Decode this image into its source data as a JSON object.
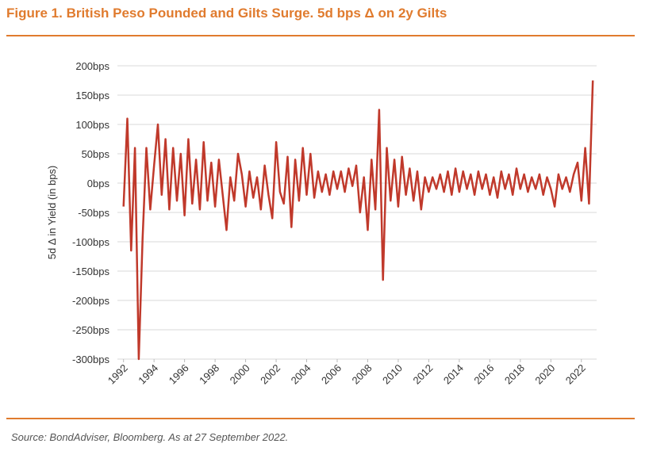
{
  "chart_data": {
    "type": "line",
    "title": "Figure 1. British Peso Pounded and Gilts Surge. 5d bps Δ on 2y Gilts",
    "y_label": "5d Δ in Yield (in bps)",
    "source": "Source: BondAdviser, Bloomberg. As at 27 September 2022.",
    "color": "#c0392b",
    "grid": true,
    "xlim": [
      1991.6,
      2023.0
    ],
    "ylim": [
      -300,
      200
    ],
    "yticks": [
      {
        "value": 200,
        "label": "200bps"
      },
      {
        "value": 150,
        "label": "150bps"
      },
      {
        "value": 100,
        "label": "100bps"
      },
      {
        "value": 50,
        "label": "50bps"
      },
      {
        "value": 0,
        "label": "0bps"
      },
      {
        "value": -50,
        "label": "-50bps"
      },
      {
        "value": -100,
        "label": "-100bps"
      },
      {
        "value": -150,
        "label": "-150bps"
      },
      {
        "value": -200,
        "label": "-200bps"
      },
      {
        "value": -250,
        "label": "-250bps"
      },
      {
        "value": -300,
        "label": "-300bps"
      }
    ],
    "xticks": [
      1992,
      1994,
      1996,
      1998,
      2000,
      2002,
      2004,
      2006,
      2008,
      2010,
      2012,
      2014,
      2016,
      2018,
      2020,
      2022
    ],
    "x": [
      1992.0,
      1992.25,
      1992.5,
      1992.75,
      1993.0,
      1993.25,
      1993.5,
      1993.75,
      1994.0,
      1994.25,
      1994.5,
      1994.75,
      1995.0,
      1995.25,
      1995.5,
      1995.75,
      1996.0,
      1996.25,
      1996.5,
      1996.75,
      1997.0,
      1997.25,
      1997.5,
      1997.75,
      1998.0,
      1998.25,
      1998.5,
      1998.75,
      1999.0,
      1999.25,
      1999.5,
      1999.75,
      2000.0,
      2000.25,
      2000.5,
      2000.75,
      2001.0,
      2001.25,
      2001.5,
      2001.75,
      2002.0,
      2002.25,
      2002.5,
      2002.75,
      2003.0,
      2003.25,
      2003.5,
      2003.75,
      2004.0,
      2004.25,
      2004.5,
      2004.75,
      2005.0,
      2005.25,
      2005.5,
      2005.75,
      2006.0,
      2006.25,
      2006.5,
      2006.75,
      2007.0,
      2007.25,
      2007.5,
      2007.75,
      2008.0,
      2008.25,
      2008.5,
      2008.75,
      2009.0,
      2009.25,
      2009.5,
      2009.75,
      2010.0,
      2010.25,
      2010.5,
      2010.75,
      2011.0,
      2011.25,
      2011.5,
      2011.75,
      2012.0,
      2012.25,
      2012.5,
      2012.75,
      2013.0,
      2013.25,
      2013.5,
      2013.75,
      2014.0,
      2014.25,
      2014.5,
      2014.75,
      2015.0,
      2015.25,
      2015.5,
      2015.75,
      2016.0,
      2016.25,
      2016.5,
      2016.75,
      2017.0,
      2017.25,
      2017.5,
      2017.75,
      2018.0,
      2018.25,
      2018.5,
      2018.75,
      2019.0,
      2019.25,
      2019.5,
      2019.75,
      2020.0,
      2020.25,
      2020.5,
      2020.75,
      2021.0,
      2021.25,
      2021.5,
      2021.75,
      2022.0,
      2022.25,
      2022.5,
      2022.75
    ],
    "values": [
      -40,
      110,
      -115,
      60,
      -300,
      -95,
      60,
      -45,
      30,
      100,
      -20,
      75,
      -45,
      60,
      -30,
      50,
      -55,
      75,
      -35,
      40,
      -45,
      70,
      -30,
      35,
      -40,
      40,
      -20,
      -80,
      10,
      -30,
      50,
      15,
      -40,
      20,
      -25,
      10,
      -45,
      30,
      -20,
      -60,
      70,
      -15,
      -35,
      45,
      -75,
      40,
      -30,
      60,
      -20,
      50,
      -25,
      20,
      -15,
      15,
      -20,
      20,
      -10,
      20,
      -15,
      25,
      -5,
      30,
      -50,
      10,
      -80,
      40,
      -45,
      125,
      -165,
      60,
      -30,
      40,
      -40,
      45,
      -20,
      25,
      -30,
      20,
      -45,
      10,
      -15,
      10,
      -10,
      15,
      -15,
      20,
      -20,
      25,
      -15,
      20,
      -10,
      15,
      -20,
      20,
      -10,
      15,
      -20,
      10,
      -25,
      20,
      -10,
      15,
      -20,
      25,
      -10,
      15,
      -15,
      10,
      -10,
      15,
      -20,
      10,
      -10,
      -40,
      15,
      -10,
      10,
      -15,
      15,
      35,
      -30,
      60,
      -35,
      175
    ]
  }
}
